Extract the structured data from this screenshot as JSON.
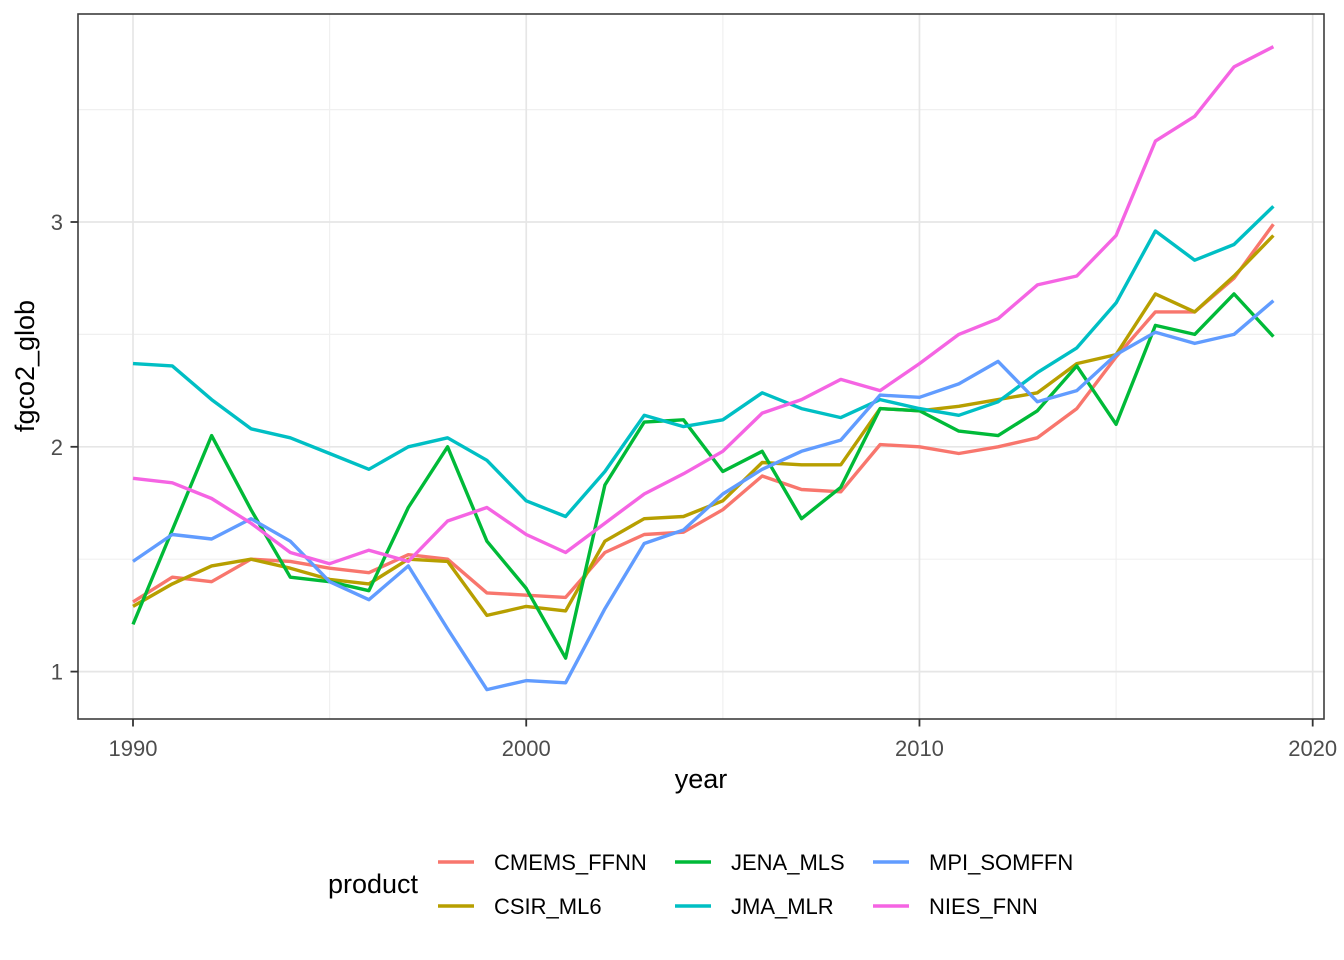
{
  "chart_data": {
    "type": "line",
    "title": "",
    "xlabel": "year",
    "ylabel": "fgco2_glob",
    "legend_title": "product",
    "legend_position": "bottom",
    "grid": true,
    "xlim": [
      1988.6,
      2020.3
    ],
    "ylim": [
      0.78,
      3.93
    ],
    "x_major_ticks": [
      1990,
      2000,
      2010,
      2020
    ],
    "x_minor_ticks": [
      1995,
      2005,
      2015
    ],
    "y_major_ticks": [
      1,
      2,
      3
    ],
    "y_minor_ticks": [
      1.5,
      2.5,
      3.5
    ],
    "x": [
      1990,
      1991,
      1992,
      1993,
      1994,
      1995,
      1996,
      1997,
      1998,
      1999,
      2000,
      2001,
      2002,
      2003,
      2004,
      2005,
      2006,
      2007,
      2008,
      2009,
      2010,
      2011,
      2012,
      2013,
      2014,
      2015,
      2016,
      2017,
      2018,
      2019
    ],
    "series": [
      {
        "name": "CMEMS_FFNN",
        "color": "#F8766D",
        "values": [
          1.31,
          1.42,
          1.4,
          1.5,
          1.49,
          1.46,
          1.44,
          1.52,
          1.5,
          1.35,
          1.34,
          1.33,
          1.53,
          1.61,
          1.62,
          1.72,
          1.87,
          1.81,
          1.8,
          2.01,
          2.0,
          1.97,
          2.0,
          2.04,
          2.17,
          2.4,
          2.6,
          2.6,
          2.75,
          2.99
        ]
      },
      {
        "name": "CSIR_ML6",
        "color": "#B79F00",
        "values": [
          1.29,
          1.39,
          1.47,
          1.5,
          1.46,
          1.41,
          1.39,
          1.5,
          1.49,
          1.25,
          1.29,
          1.27,
          1.58,
          1.68,
          1.69,
          1.76,
          1.93,
          1.92,
          1.92,
          2.17,
          2.16,
          2.18,
          2.21,
          2.24,
          2.37,
          2.41,
          2.68,
          2.6,
          2.76,
          2.94
        ]
      },
      {
        "name": "JENA_MLS",
        "color": "#00BA38",
        "values": [
          1.21,
          1.63,
          2.05,
          1.72,
          1.42,
          1.4,
          1.36,
          1.73,
          2.0,
          1.58,
          1.37,
          1.06,
          1.83,
          2.11,
          2.12,
          1.89,
          1.98,
          1.68,
          1.82,
          2.17,
          2.16,
          2.07,
          2.05,
          2.16,
          2.36,
          2.1,
          2.54,
          2.5,
          2.68,
          2.49
        ]
      },
      {
        "name": "JMA_MLR",
        "color": "#00BFC4",
        "values": [
          2.37,
          2.36,
          2.21,
          2.08,
          2.04,
          1.97,
          1.9,
          2.0,
          2.04,
          1.94,
          1.76,
          1.69,
          1.89,
          2.14,
          2.09,
          2.12,
          2.24,
          2.17,
          2.13,
          2.21,
          2.17,
          2.14,
          2.2,
          2.33,
          2.44,
          2.64,
          2.96,
          2.83,
          2.9,
          3.07
        ]
      },
      {
        "name": "MPI_SOMFFN",
        "color": "#619CFF",
        "values": [
          1.49,
          1.61,
          1.59,
          1.68,
          1.58,
          1.4,
          1.32,
          1.47,
          1.19,
          0.92,
          0.96,
          0.95,
          1.28,
          1.57,
          1.63,
          1.79,
          1.9,
          1.98,
          2.03,
          2.23,
          2.22,
          2.28,
          2.38,
          2.2,
          2.25,
          2.41,
          2.51,
          2.46,
          2.5,
          2.65
        ]
      },
      {
        "name": "NIES_FNN",
        "color": "#F564E3",
        "values": [
          1.86,
          1.84,
          1.77,
          1.66,
          1.53,
          1.48,
          1.54,
          1.49,
          1.67,
          1.73,
          1.61,
          1.53,
          1.66,
          1.79,
          1.88,
          1.98,
          2.15,
          2.21,
          2.3,
          2.25,
          2.37,
          2.5,
          2.57,
          2.72,
          2.76,
          2.94,
          3.36,
          3.47,
          3.69,
          3.78
        ]
      }
    ],
    "style": {
      "panel_border_color": "#3d3d3d",
      "major_grid_color": "#e6e6e6",
      "minor_grid_color": "#f0f0f0",
      "tick_color": "#333333",
      "tick_label_color": "#4d4d4d",
      "background": "#ffffff"
    }
  }
}
